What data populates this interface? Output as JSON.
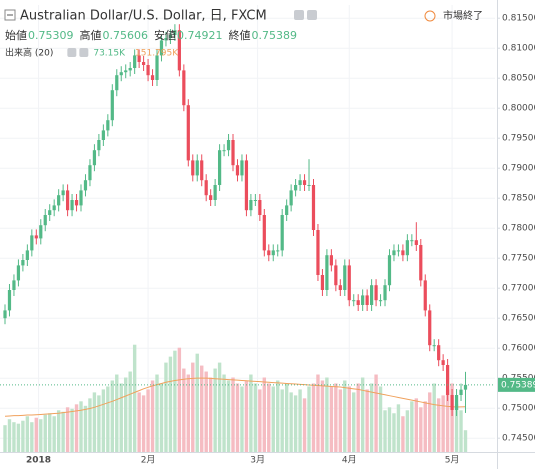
{
  "chart_data": {
    "type": "candlestick",
    "title": "Australian Dollar/U.S. Dollar, 日, FXCM",
    "ohlc_labels": [
      "始値",
      "高値",
      "安値",
      "終値"
    ],
    "status": "市場終了",
    "colors": {
      "up": "#53b987",
      "down": "#eb4d5c"
    },
    "open": [
      0.765,
      0.7663,
      0.7697,
      0.7713,
      0.7738,
      0.7747,
      0.7763,
      0.7788,
      0.7783,
      0.7805,
      0.7822,
      0.783,
      0.7838,
      0.7855,
      0.7863,
      0.783,
      0.7847,
      0.7838,
      0.7863,
      0.788,
      0.7905,
      0.793,
      0.7947,
      0.7963,
      0.798,
      0.803,
      0.8055,
      0.806,
      0.8063,
      0.8067,
      0.8088,
      0.8077,
      0.8072,
      0.8055,
      0.8047,
      0.8088,
      0.8113,
      0.8117,
      0.8122,
      0.813,
      0.8063,
      0.8005,
      0.7913,
      0.7888,
      0.7913,
      0.788,
      0.7855,
      0.7847,
      0.7872,
      0.793,
      0.793,
      0.7947,
      0.7905,
      0.7888,
      0.7913,
      0.783,
      0.7847,
      0.7847,
      0.7822,
      0.7763,
      0.7755,
      0.7763,
      0.7763,
      0.7822,
      0.7838,
      0.7863,
      0.7872,
      0.788,
      0.7872,
      0.7872,
      0.7797,
      0.7722,
      0.7697,
      0.7755,
      0.7738,
      0.7705,
      0.7697,
      0.7738,
      0.768,
      0.768,
      0.7672,
      0.7688,
      0.7672,
      0.7705,
      0.768,
      0.768,
      0.7705,
      0.7755,
      0.7763,
      0.7763,
      0.7755,
      0.778,
      0.778,
      0.7772,
      0.7713,
      0.7663,
      0.7605,
      0.7605,
      0.758,
      0.7572,
      0.7522,
      0.7497,
      0.7522,
      0.75309
    ],
    "high": [
      0.7673,
      0.7707,
      0.7723,
      0.7748,
      0.7757,
      0.7773,
      0.7798,
      0.7798,
      0.7815,
      0.7832,
      0.784,
      0.7848,
      0.7865,
      0.7873,
      0.7873,
      0.7857,
      0.7857,
      0.7873,
      0.789,
      0.7915,
      0.794,
      0.7957,
      0.7973,
      0.799,
      0.804,
      0.8065,
      0.807,
      0.8073,
      0.8077,
      0.8098,
      0.8098,
      0.8087,
      0.8082,
      0.8065,
      0.8098,
      0.8123,
      0.8127,
      0.8132,
      0.814,
      0.814,
      0.8073,
      0.8015,
      0.7923,
      0.7923,
      0.7923,
      0.789,
      0.7865,
      0.7882,
      0.794,
      0.794,
      0.7957,
      0.7957,
      0.7915,
      0.7923,
      0.7923,
      0.7857,
      0.7857,
      0.7857,
      0.7832,
      0.7773,
      0.7773,
      0.7773,
      0.7832,
      0.7848,
      0.7873,
      0.7882,
      0.789,
      0.789,
      0.7915,
      0.7882,
      0.7807,
      0.7732,
      0.7765,
      0.7765,
      0.7748,
      0.7715,
      0.7748,
      0.7748,
      0.769,
      0.769,
      0.7698,
      0.7698,
      0.7715,
      0.7715,
      0.769,
      0.7715,
      0.7765,
      0.7773,
      0.7773,
      0.7773,
      0.779,
      0.779,
      0.781,
      0.7782,
      0.7723,
      0.7673,
      0.7615,
      0.7615,
      0.759,
      0.7582,
      0.7532,
      0.7532,
      0.7541,
      0.75606
    ],
    "low": [
      0.764,
      0.7653,
      0.7687,
      0.7703,
      0.7728,
      0.7737,
      0.7753,
      0.7773,
      0.7773,
      0.7795,
      0.7812,
      0.782,
      0.7828,
      0.7845,
      0.782,
      0.782,
      0.7828,
      0.7828,
      0.7853,
      0.787,
      0.7895,
      0.792,
      0.7937,
      0.7953,
      0.797,
      0.802,
      0.8045,
      0.805,
      0.8053,
      0.8057,
      0.8067,
      0.8062,
      0.8045,
      0.8037,
      0.8037,
      0.8078,
      0.8103,
      0.8107,
      0.8112,
      0.8053,
      0.7995,
      0.7903,
      0.7878,
      0.7878,
      0.787,
      0.7845,
      0.7837,
      0.7837,
      0.7862,
      0.792,
      0.792,
      0.7895,
      0.7878,
      0.7878,
      0.782,
      0.782,
      0.7837,
      0.7812,
      0.7753,
      0.7745,
      0.7745,
      0.7753,
      0.7753,
      0.7812,
      0.7828,
      0.7853,
      0.7862,
      0.7862,
      0.7862,
      0.7787,
      0.7712,
      0.7687,
      0.7687,
      0.7728,
      0.7695,
      0.7687,
      0.7687,
      0.767,
      0.767,
      0.7662,
      0.7662,
      0.7662,
      0.7662,
      0.767,
      0.767,
      0.767,
      0.7695,
      0.7745,
      0.7753,
      0.7745,
      0.7745,
      0.777,
      0.7762,
      0.7703,
      0.7653,
      0.7595,
      0.7595,
      0.757,
      0.7562,
      0.7512,
      0.7487,
      0.7487,
      0.7512,
      0.74921
    ],
    "close": [
      0.7663,
      0.7697,
      0.7713,
      0.7738,
      0.7747,
      0.7763,
      0.7788,
      0.7783,
      0.7805,
      0.7822,
      0.783,
      0.7838,
      0.7855,
      0.7863,
      0.783,
      0.7847,
      0.7838,
      0.7863,
      0.788,
      0.7905,
      0.793,
      0.7947,
      0.7963,
      0.798,
      0.803,
      0.8055,
      0.806,
      0.8063,
      0.8067,
      0.8088,
      0.8077,
      0.8072,
      0.8055,
      0.8047,
      0.8088,
      0.8113,
      0.8117,
      0.8122,
      0.813,
      0.8063,
      0.8005,
      0.7913,
      0.7888,
      0.7913,
      0.788,
      0.7855,
      0.7847,
      0.7872,
      0.793,
      0.793,
      0.7947,
      0.7905,
      0.7888,
      0.7913,
      0.783,
      0.7847,
      0.7847,
      0.7822,
      0.7763,
      0.7755,
      0.7763,
      0.7763,
      0.7822,
      0.7838,
      0.7863,
      0.7872,
      0.788,
      0.7872,
      0.7872,
      0.7797,
      0.7722,
      0.7697,
      0.7755,
      0.7738,
      0.7705,
      0.7697,
      0.7738,
      0.768,
      0.768,
      0.7672,
      0.7688,
      0.7672,
      0.7705,
      0.768,
      0.768,
      0.7705,
      0.7755,
      0.7763,
      0.7763,
      0.7755,
      0.778,
      0.778,
      0.7772,
      0.7713,
      0.7663,
      0.7605,
      0.7605,
      0.758,
      0.7572,
      0.7522,
      0.7497,
      0.7522,
      0.75309,
      0.75389
    ],
    "volume": {
      "name": "出来高 (20)",
      "axis": "y2",
      "value_label": "73.15K",
      "color_up": "#bfe3cb",
      "color_down": "#f5bcc2",
      "values": [
        90,
        110,
        100,
        95,
        105,
        120,
        100,
        115,
        110,
        125,
        130,
        120,
        140,
        135,
        150,
        145,
        160,
        170,
        155,
        180,
        200,
        190,
        210,
        220,
        240,
        260,
        230,
        250,
        270,
        360,
        200,
        190,
        210,
        240,
        260,
        230,
        300,
        320,
        340,
        350,
        280,
        260,
        300,
        330,
        290,
        270,
        250,
        280,
        300,
        260,
        240,
        250,
        230,
        220,
        240,
        260,
        230,
        210,
        250,
        230,
        220,
        240,
        210,
        230,
        200,
        190,
        210,
        180,
        220,
        230,
        260,
        240,
        250,
        220,
        230,
        210,
        240,
        220,
        200,
        230,
        250,
        210,
        230,
        260,
        220,
        140,
        150,
        130,
        160,
        120,
        140,
        170,
        180,
        150,
        170,
        200,
        230,
        180,
        190,
        210,
        230,
        160,
        140,
        73.15
      ]
    },
    "volume_ma": {
      "axis": "y2",
      "value_label": "151.795K",
      "color": "#f0a15c",
      "values": [
        120,
        121,
        122,
        122,
        123,
        124,
        124,
        125,
        126,
        127,
        128,
        129,
        130,
        132,
        134,
        136,
        138,
        140,
        143,
        146,
        150,
        155,
        160,
        165,
        170,
        176,
        182,
        188,
        194,
        200,
        206,
        212,
        217,
        222,
        226,
        230,
        234,
        237,
        240,
        242,
        244,
        246,
        247,
        248,
        248,
        248,
        247,
        246,
        245,
        244,
        243,
        242,
        241,
        240,
        239,
        238,
        237,
        236,
        235,
        234,
        233,
        232,
        231,
        230,
        229,
        228,
        227,
        226,
        225,
        224,
        223,
        222,
        221,
        220,
        219,
        218,
        216,
        214,
        212,
        210,
        207,
        204,
        201,
        198,
        195,
        192,
        189,
        186,
        183,
        180,
        177,
        174,
        171,
        168,
        165,
        162,
        159,
        157,
        155,
        153,
        152,
        151,
        151.5,
        151.795
      ]
    },
    "xlim": [
      -1.12,
      109.6
    ],
    "xticks": [
      {
        "value": 7.5,
        "label": "2018"
      },
      {
        "value": 32,
        "label": "2月"
      },
      {
        "value": 56.5,
        "label": "3月"
      },
      {
        "value": 77,
        "label": "4月"
      },
      {
        "value": 100,
        "label": "5月"
      }
    ],
    "ylim": [
      0.7427,
      0.8172
    ],
    "yticks": [
      {
        "value": 0.745,
        "label": "0.74500"
      },
      {
        "value": 0.75,
        "label": "0.75000"
      },
      {
        "value": 0.755,
        "label": "0.75500"
      },
      {
        "value": 0.76,
        "label": "0.76000"
      },
      {
        "value": 0.765,
        "label": "0.76500"
      },
      {
        "value": 0.77,
        "label": "0.77000"
      },
      {
        "value": 0.775,
        "label": "0.77500"
      },
      {
        "value": 0.78,
        "label": "0.78000"
      },
      {
        "value": 0.785,
        "label": "0.78500"
      },
      {
        "value": 0.79,
        "label": "0.79000"
      },
      {
        "value": 0.795,
        "label": "0.79500"
      },
      {
        "value": 0.8,
        "label": "0.80000"
      },
      {
        "value": 0.805,
        "label": "0.80500"
      },
      {
        "value": 0.81,
        "label": "0.81000"
      },
      {
        "value": 0.815,
        "label": "0.81500"
      }
    ],
    "y2lim": [
      0,
      1500
    ],
    "grid": true
  }
}
